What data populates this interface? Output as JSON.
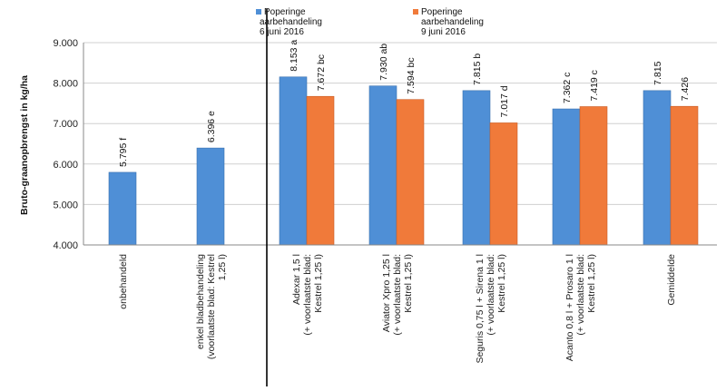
{
  "chart_data": {
    "type": "bar",
    "ylabel": "Bruto-graanopbrengst in kg/ha",
    "ylim": [
      4000,
      9000
    ],
    "yticks": [
      "4.000",
      "5.000",
      "6.000",
      "7.000",
      "8.000",
      "9.000"
    ],
    "grid": true,
    "legend_position": "top",
    "categories": [
      [
        "onbehandeld"
      ],
      [
        "enkel bladbehandeling",
        "(voorlaatste blad: Kestrel",
        "1,25 l)"
      ],
      [
        "Adexar 1,5 l",
        "(+ voorlaatste blad:",
        "Kestrel 1,25 l)"
      ],
      [
        "Aviator Xpro 1,25 l",
        "(+ voorlaatste blad:",
        "Kestrel 1,25 l)"
      ],
      [
        "Seguris 0,75 l + Sirena 1 l",
        "(+ voorlaatste blad:",
        "Kestrel 1,25 l)"
      ],
      [
        "Acanto 0,8 l + Prosaro 1 l",
        "(+ voorlaatste blad:",
        "Kestrel 1,25 l)"
      ],
      [
        "Gemiddelde"
      ]
    ],
    "series": [
      {
        "name": "Poperinge aarbehandeling 6 juni 2016",
        "legend_lines": [
          "Poperinge",
          "aarbehandeling",
          "6 juni 2016"
        ],
        "color": "#4f8fd6",
        "values": [
          5795,
          6396,
          8153,
          7930,
          7815,
          7362,
          7815
        ],
        "labels": [
          "5.795 f",
          "6.396 e",
          "8.153 a",
          "7.930 ab",
          "7.815 b",
          "7.362 c",
          "7.815"
        ]
      },
      {
        "name": "Poperinge aarbehandeling 9 juni 2016",
        "legend_lines": [
          "Poperinge",
          "aarbehandeling",
          "9 juni 2016"
        ],
        "color": "#f07a3a",
        "values": [
          null,
          null,
          7672,
          7594,
          7017,
          7419,
          7426
        ],
        "labels": [
          null,
          null,
          "7.672 bc",
          "7.594 bc",
          "7.017 d",
          "7.419 c",
          "7.426"
        ]
      }
    ]
  }
}
